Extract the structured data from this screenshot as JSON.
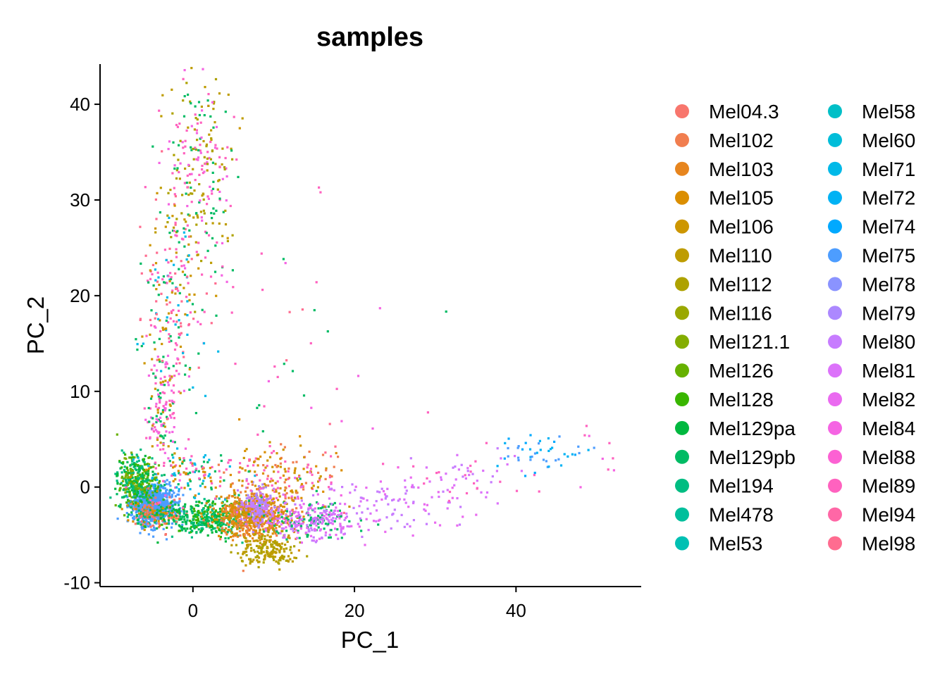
{
  "chart_data": {
    "type": "scatter",
    "title": "samples",
    "xlabel": "PC_1",
    "ylabel": "PC_2",
    "xlim": [
      -11.5,
      55.5
    ],
    "ylim": [
      -10.4,
      44.2
    ],
    "xticks": [
      0,
      20,
      40
    ],
    "yticks": [
      -10,
      0,
      10,
      20,
      30,
      40
    ],
    "xtick_labels": [
      "0",
      "20",
      "40"
    ],
    "ytick_labels": [
      "-10",
      "0",
      "10",
      "20",
      "30",
      "40"
    ],
    "grid": false,
    "legend_placement": "right",
    "legend_columns": 2,
    "series": [
      {
        "name": "Mel04.3",
        "color": "#F8766D"
      },
      {
        "name": "Mel102",
        "color": "#F17E4F"
      },
      {
        "name": "Mel103",
        "color": "#E7851E"
      },
      {
        "name": "Mel105",
        "color": "#DB8E00"
      },
      {
        "name": "Mel106",
        "color": "#CD9600"
      },
      {
        "name": "Mel110",
        "color": "#BE9C00"
      },
      {
        "name": "Mel112",
        "color": "#AEA200"
      },
      {
        "name": "Mel116",
        "color": "#9AA800"
      },
      {
        "name": "Mel121.1",
        "color": "#83AD00"
      },
      {
        "name": "Mel126",
        "color": "#66B100"
      },
      {
        "name": "Mel128",
        "color": "#39B600"
      },
      {
        "name": "Mel129pa",
        "color": "#00B83F"
      },
      {
        "name": "Mel129pb",
        "color": "#00BB64"
      },
      {
        "name": "Mel194",
        "color": "#00BD82"
      },
      {
        "name": "Mel478",
        "color": "#00BF9C"
      },
      {
        "name": "Mel53",
        "color": "#00C0B3"
      },
      {
        "name": "Mel58",
        "color": "#00BFC7"
      },
      {
        "name": "Mel60",
        "color": "#00BDD9"
      },
      {
        "name": "Mel71",
        "color": "#00B9E8"
      },
      {
        "name": "Mel72",
        "color": "#00B2F4"
      },
      {
        "name": "Mel74",
        "color": "#00A9FF"
      },
      {
        "name": "Mel75",
        "color": "#4D9DFF"
      },
      {
        "name": "Mel78",
        "color": "#8A93FF"
      },
      {
        "name": "Mel79",
        "color": "#AC88FF"
      },
      {
        "name": "Mel80",
        "color": "#C77CFF"
      },
      {
        "name": "Mel81",
        "color": "#DC72FA"
      },
      {
        "name": "Mel82",
        "color": "#EA6AF0"
      },
      {
        "name": "Mel84",
        "color": "#F564E3"
      },
      {
        "name": "Mel88",
        "color": "#FC61D3"
      },
      {
        "name": "Mel89",
        "color": "#FF62BF"
      },
      {
        "name": "Mel94",
        "color": "#FF67A6"
      },
      {
        "name": "Mel98",
        "color": "#FF6C90"
      }
    ],
    "clusters": [
      {
        "cx": -5.0,
        "cy": -1.8,
        "sx": 1.3,
        "sy": 1.0,
        "n": 900,
        "colors": [
          "#4D9DFF"
        ]
      },
      {
        "cx": -7.0,
        "cy": 0.5,
        "sx": 1.2,
        "sy": 1.4,
        "n": 380,
        "colors": [
          "#39B600",
          "#00BB64",
          "#66B100",
          "#83AD00",
          "#00B83F",
          "#00BD82"
        ]
      },
      {
        "cx": -4.5,
        "cy": -2.8,
        "sx": 1.8,
        "sy": 0.7,
        "n": 180,
        "colors": [
          "#F8766D",
          "#00BB64",
          "#DB8E00"
        ]
      },
      {
        "cx": 2.0,
        "cy": -3.3,
        "sx": 2.8,
        "sy": 0.9,
        "n": 420,
        "colors": [
          "#00BB64",
          "#39B600",
          "#00B83F",
          "#00BD82"
        ]
      },
      {
        "cx": 7.5,
        "cy": -3.0,
        "sx": 2.2,
        "sy": 1.2,
        "n": 650,
        "colors": [
          "#DB8E00",
          "#E7851E",
          "#F17E4F",
          "#CD9600"
        ]
      },
      {
        "cx": 8.0,
        "cy": -2.0,
        "sx": 1.0,
        "sy": 0.9,
        "n": 160,
        "colors": [
          "#AC88FF",
          "#C77CFF"
        ]
      },
      {
        "cx": 9.5,
        "cy": -6.5,
        "sx": 1.8,
        "sy": 0.8,
        "n": 180,
        "colors": [
          "#BE9C00",
          "#AEA200"
        ]
      },
      {
        "cx": 14.5,
        "cy": -3.5,
        "sx": 3.0,
        "sy": 1.0,
        "n": 320,
        "colors": [
          "#C77CFF",
          "#DC72FA",
          "#EA6AF0",
          "#00BB64"
        ]
      },
      {
        "cx": 11.0,
        "cy": 1.0,
        "sx": 3.5,
        "sy": 1.8,
        "n": 180,
        "colors": [
          "#DB8E00",
          "#F17E4F",
          "#FF62BF",
          "#CD9600"
        ]
      },
      {
        "cx": 1.0,
        "cy": 33.0,
        "sx": 2.2,
        "sy": 5.0,
        "n": 260,
        "colors": [
          "#BE9C00",
          "#AEA200",
          "#FF62BF",
          "#00BB64",
          "#F564E3"
        ]
      },
      {
        "cx": -2.3,
        "cy": 20.0,
        "sx": 2.0,
        "sy": 5.0,
        "n": 220,
        "colors": [
          "#FF62BF",
          "#00BB64",
          "#CD9600",
          "#FF6C90",
          "#00B9E8"
        ]
      },
      {
        "cx": -3.8,
        "cy": 8.0,
        "sx": 1.2,
        "sy": 4.0,
        "n": 170,
        "colors": [
          "#FF62BF",
          "#00BB64",
          "#CD9600",
          "#F564E3"
        ]
      },
      {
        "cx": 0.0,
        "cy": 1.5,
        "sx": 3.0,
        "sy": 1.3,
        "n": 130,
        "colors": [
          "#FF62BF",
          "#00BB64",
          "#DB8E00",
          "#00B9E8"
        ]
      },
      {
        "cx": 24.0,
        "cy": -2.0,
        "sx": 5.0,
        "sy": 1.5,
        "n": 110,
        "colors": [
          "#C77CFF",
          "#DC72FA",
          "#EA6AF0"
        ]
      },
      {
        "cx": 34.0,
        "cy": 1.2,
        "sx": 4.0,
        "sy": 1.6,
        "n": 55,
        "colors": [
          "#C77CFF",
          "#DC72FA",
          "#FF62BF"
        ]
      },
      {
        "cx": 43.0,
        "cy": 3.5,
        "sx": 2.5,
        "sy": 1.0,
        "n": 45,
        "colors": [
          "#00A9FF",
          "#4D9DFF",
          "#00B2F4"
        ]
      },
      {
        "cx": 50.0,
        "cy": 3.5,
        "sx": 1.5,
        "sy": 1.5,
        "n": 8,
        "colors": [
          "#FF62BF",
          "#F564E3"
        ]
      },
      {
        "cx": 14.0,
        "cy": 10.0,
        "sx": 7.0,
        "sy": 6.0,
        "n": 45,
        "colors": [
          "#FF62BF",
          "#FF6C90",
          "#00BB64",
          "#F564E3"
        ]
      }
    ],
    "points": [
      {
        "x": 15.6,
        "y": 31.3,
        "color": "#FF62BF"
      },
      {
        "x": 15.8,
        "y": 30.8,
        "color": "#FF62BF"
      },
      {
        "x": 15.3,
        "y": 21.4,
        "color": "#FF62BF"
      },
      {
        "x": 8.5,
        "y": 24.4,
        "color": "#FF62BF"
      },
      {
        "x": 29.1,
        "y": 7.8,
        "color": "#FF62BF"
      },
      {
        "x": 52.0,
        "y": 3.0,
        "color": "#FF62BF"
      },
      {
        "x": 1.5,
        "y": 41.8,
        "color": "#BE9C00"
      },
      {
        "x": 4.4,
        "y": 41.0,
        "color": "#BE9C00"
      },
      {
        "x": 5.8,
        "y": 37.5,
        "color": "#CD9600"
      },
      {
        "x": 10.5,
        "y": 11.5,
        "color": "#FF62BF"
      }
    ]
  }
}
